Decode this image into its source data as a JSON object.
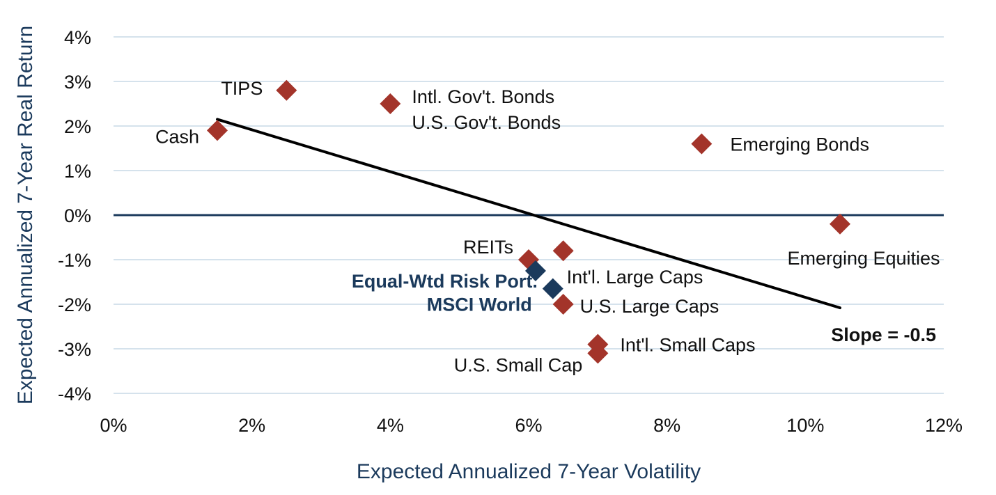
{
  "chart_data": {
    "type": "scatter",
    "title": "",
    "xlabel": "Expected Annualized 7-Year Volatility",
    "ylabel": "Expected Annualized 7-Year Real Return",
    "xlim": [
      0,
      12
    ],
    "ylim": [
      -4,
      4
    ],
    "x_ticks": [
      0,
      2,
      4,
      6,
      8,
      10,
      12
    ],
    "x_tick_labels": [
      "0%",
      "2%",
      "4%",
      "6%",
      "8%",
      "10%",
      "12%"
    ],
    "y_ticks": [
      4,
      3,
      2,
      1,
      0,
      -1,
      -2,
      -3,
      -4
    ],
    "y_tick_labels": [
      "4%",
      "3%",
      "2%",
      "1%",
      "0%",
      "-1%",
      "-2%",
      "-3%",
      "-4%"
    ],
    "grid": "horizontal",
    "zero_line": true,
    "colors": {
      "asset": "#a3342a",
      "portfolio": "#1b3a5c",
      "grid": "#d5e2ec",
      "zero_line": "#1b3a5c",
      "trend": "#000000"
    },
    "points": [
      {
        "name": "Cash",
        "x": 1.5,
        "y": 1.9,
        "group": "asset"
      },
      {
        "name": "TIPS",
        "x": 2.5,
        "y": 2.8,
        "group": "asset"
      },
      {
        "name": "Intl. Gov't. Bonds",
        "x": 4.0,
        "y": 2.5,
        "group": "asset"
      },
      {
        "name": "U.S. Gov't. Bonds",
        "x": 4.0,
        "y": 2.5,
        "group": "asset"
      },
      {
        "name": "Emerging Bonds",
        "x": 8.5,
        "y": 1.6,
        "group": "asset"
      },
      {
        "name": "Emerging Equities",
        "x": 10.5,
        "y": -0.2,
        "group": "asset"
      },
      {
        "name": "REITs",
        "x": 6.0,
        "y": -1.0,
        "group": "asset"
      },
      {
        "name": "Int'l. Large Caps",
        "x": 6.5,
        "y": -0.8,
        "group": "asset"
      },
      {
        "name": "Equal-Wtd Risk Port.",
        "x": 6.1,
        "y": -1.25,
        "group": "portfolio"
      },
      {
        "name": "MSCI World",
        "x": 6.35,
        "y": -1.65,
        "group": "portfolio"
      },
      {
        "name": "U.S. Large Caps",
        "x": 6.5,
        "y": -2.0,
        "group": "asset"
      },
      {
        "name": "Int'l. Small Caps",
        "x": 7.0,
        "y": -2.9,
        "group": "asset"
      },
      {
        "name": "U.S. Small Cap",
        "x": 7.0,
        "y": -3.1,
        "group": "asset"
      }
    ],
    "trend_line": {
      "x": [
        1.5,
        10.5
      ],
      "y": [
        2.15,
        -2.08
      ],
      "slope": -0.5
    },
    "annotations": [
      {
        "text": "Slope = -0.5"
      }
    ]
  }
}
